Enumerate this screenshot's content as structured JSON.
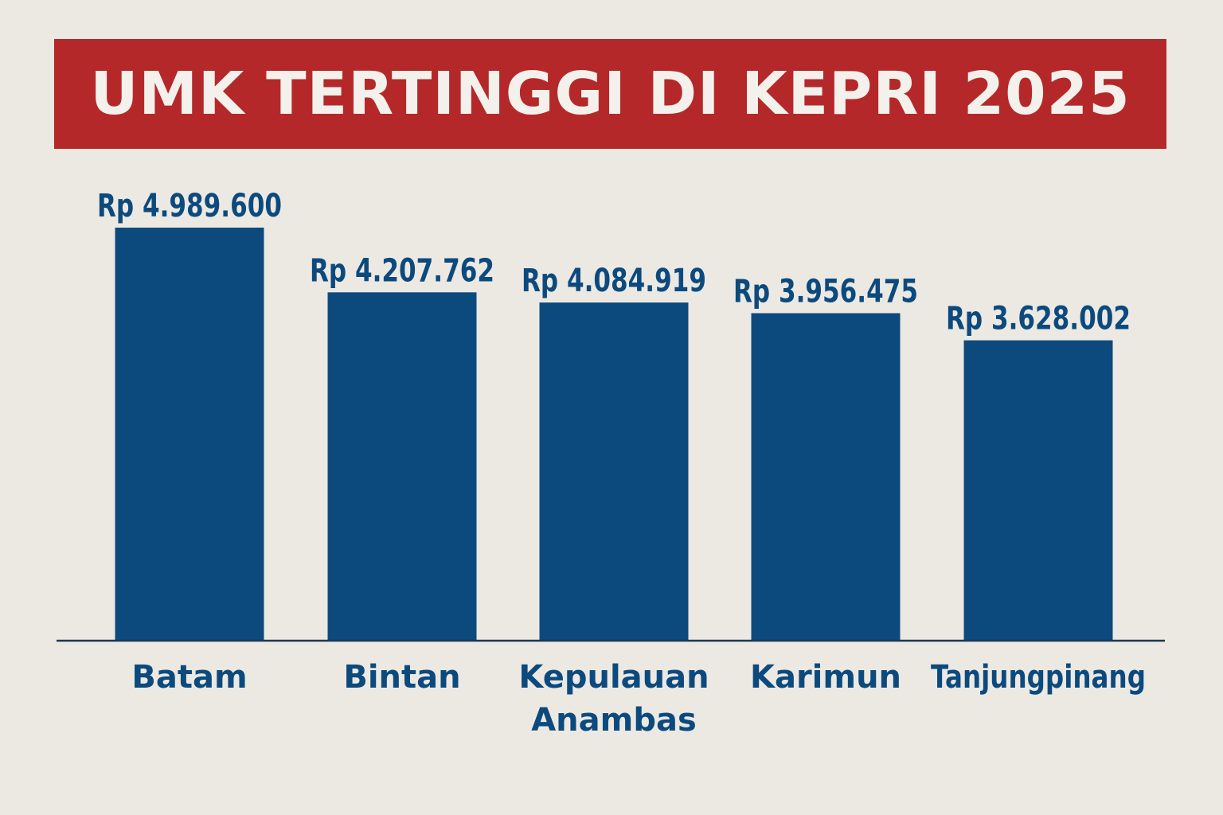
{
  "colors": {
    "background": "#ece9e3",
    "title_banner": "#b5282a",
    "title_text": "#f4f1ec",
    "bar": "#0c4a7e",
    "text": "#0c4a7e",
    "axis": "#1f3550"
  },
  "chart_data": {
    "type": "bar",
    "title": "UMK TERTINGGI DI KEPRI 2025",
    "categories": [
      [
        "Batam"
      ],
      [
        "Bintan"
      ],
      [
        "Kepulauan",
        "Anambas"
      ],
      [
        "Karimun"
      ],
      [
        "Tanjungpinang"
      ]
    ],
    "values": [
      4989600,
      4207762,
      4084919,
      3956475,
      3628002
    ],
    "data_labels": [
      "Rp 4.989.600",
      "Rp 4.207.762",
      "Rp 4.084.919",
      "Rp 3.956.475",
      "Rp 3.628.002"
    ],
    "xlabel": "",
    "ylabel": "",
    "ylim": [
      0,
      5000000
    ],
    "grid": false,
    "legend": "none"
  }
}
